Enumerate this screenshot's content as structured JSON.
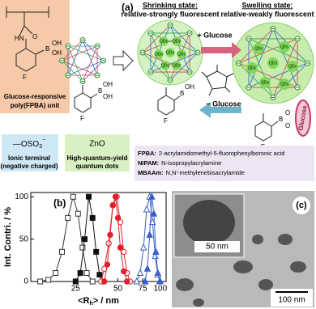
{
  "panel_a": {
    "label": "(a)",
    "atoms": {
      "oxygen": "O",
      "amine": "HN",
      "boron": "B",
      "hydroxyl": "OH",
      "fluorine": "F"
    },
    "monomer_caption": [
      "Glucose-responsive",
      "poly(FPBA) unit"
    ],
    "shrinking": {
      "title": "Shrinking state:",
      "subtitle": "relative-strongly fluorescent"
    },
    "swelling": {
      "title": "Swelling state:",
      "subtitle": "relative-weakly fluorescent"
    },
    "plus_glucose": "+ Glucose",
    "minus_glucose": "− Glucose",
    "qd_label": "QDs",
    "glucose_tag": "Glucose",
    "sulfate": {
      "group": "—OSO",
      "sub": "3",
      "charge": "−",
      "caption": [
        "Ionic terminal",
        "(negative charged)"
      ]
    },
    "zno": {
      "title": "ZnO",
      "caption": [
        "High-quantum-yield",
        "quantum dots"
      ]
    },
    "legend": [
      {
        "abbr": "FPBA:",
        "text": "2-acrylamidomethyl-5-fluorophenylboronic acid"
      },
      {
        "abbr": "NIPAM:",
        "text": "N-isopropylacrylamine"
      },
      {
        "abbr": "MBAAm:",
        "text": "N,N′-methylenebisacrylamide"
      }
    ]
  },
  "chart_data": {
    "type": "line",
    "panel_label": "(b)",
    "x_label": {
      "main": "<R",
      "sub": "h",
      "rest": "> / nm"
    },
    "y_label": "Int. Contri. / %",
    "log_x": true,
    "xlim": [
      12,
      110
    ],
    "xticks": [
      25,
      50,
      75,
      100
    ],
    "ylim": [
      0,
      105
    ],
    "yticks": [
      0,
      50,
      100
    ],
    "series": [
      {
        "color": "#333333",
        "marker": "square",
        "filled": false,
        "x": [
          14,
          16,
          18,
          20,
          22,
          24,
          26,
          28,
          30,
          33
        ],
        "values": [
          0,
          2,
          10,
          35,
          75,
          100,
          80,
          40,
          10,
          0
        ]
      },
      {
        "color": "#111111",
        "marker": "square",
        "filled": true,
        "x": [
          25,
          27,
          29,
          31,
          33,
          35,
          37,
          39
        ],
        "values": [
          0,
          10,
          50,
          100,
          75,
          35,
          8,
          0
        ]
      },
      {
        "color": "#e0202a",
        "marker": "circle",
        "filled": false,
        "x": [
          38,
          40,
          43,
          46,
          49,
          52,
          55,
          58,
          61
        ],
        "values": [
          0,
          15,
          45,
          90,
          100,
          70,
          35,
          10,
          0
        ]
      },
      {
        "color": "#e0202a",
        "marker": "circle",
        "filled": true,
        "x": [
          40,
          42,
          44,
          46,
          48,
          50,
          52,
          55,
          58
        ],
        "values": [
          0,
          20,
          55,
          90,
          100,
          75,
          40,
          12,
          0
        ]
      },
      {
        "color": "#3a5fc8",
        "marker": "triangle",
        "filled": false,
        "x": [
          68,
          72,
          76,
          80,
          84,
          88,
          92,
          96,
          100
        ],
        "values": [
          0,
          10,
          40,
          85,
          100,
          70,
          30,
          8,
          0
        ]
      },
      {
        "color": "#3a5fc8",
        "marker": "triangle",
        "filled": true,
        "x": [
          78,
          81,
          84,
          87,
          90,
          93,
          96,
          99
        ],
        "values": [
          0,
          15,
          55,
          100,
          80,
          35,
          10,
          0
        ]
      }
    ]
  },
  "panel_c": {
    "label": "(c)",
    "inset_scale": "50 nm",
    "scale": "100 nm"
  }
}
